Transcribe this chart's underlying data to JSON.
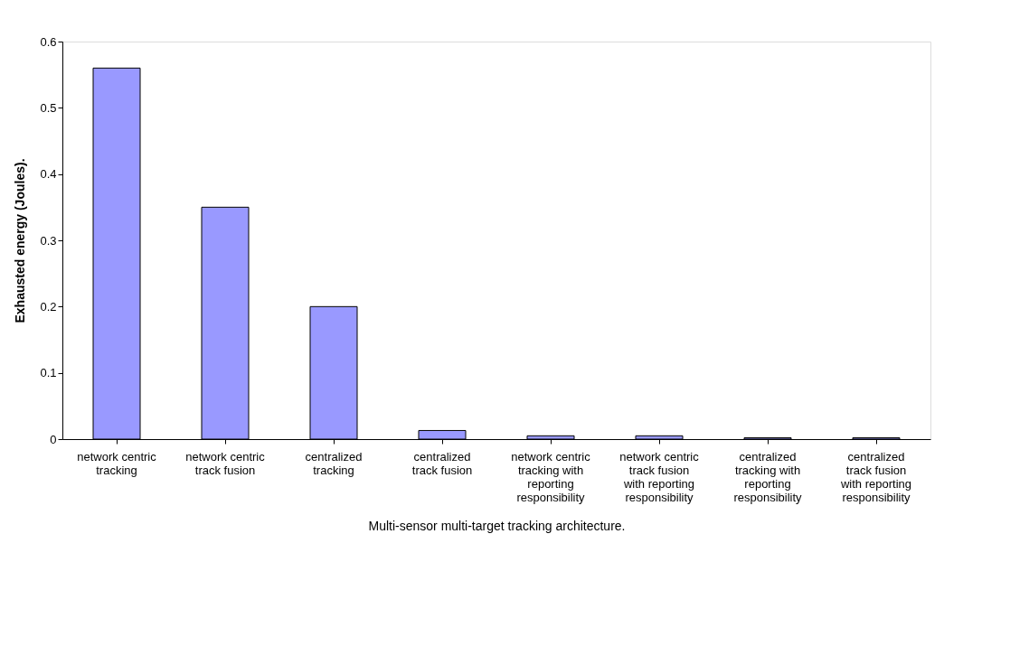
{
  "chart_data": {
    "type": "bar",
    "xlabel": "Multi-sensor multi-target tracking architecture.",
    "ylabel": "Exhausted energy (Joules).",
    "categories": [
      "network centric tracking",
      "network centric track fusion",
      "centralized tracking",
      "centralized track fusion",
      "network centric tracking with reporting responsibility",
      "network centric track fusion with reporting responsibility",
      "centralized tracking with reporting responsibility",
      "centralized track fusion with reporting responsibility"
    ],
    "values": [
      0.56,
      0.35,
      0.2,
      0.013,
      0.005,
      0.005,
      0.002,
      0.002
    ],
    "color": "#9999ff",
    "ylim": [
      0,
      0.6
    ],
    "yticks": [
      0,
      0.1,
      0.2,
      0.3,
      0.4,
      0.5,
      0.6
    ],
    "grid": false
  }
}
